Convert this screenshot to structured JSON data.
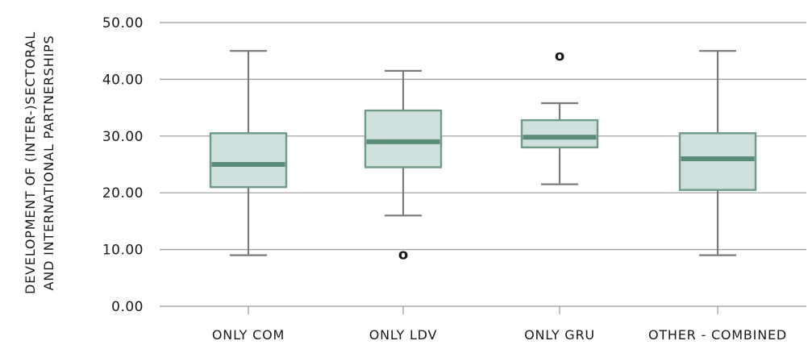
{
  "chart_data": {
    "type": "boxplot",
    "ylabel_lines": [
      "DEVELOPMENT OF (INTER-)SECTORAL",
      "AND INTERNATIONAL PARTNERSHIPS"
    ],
    "ylim": [
      0,
      50
    ],
    "yticks": [
      0,
      10,
      20,
      30,
      40,
      50
    ],
    "ytick_labels": [
      "0.00",
      "10.00",
      "20.00",
      "30.00",
      "40.00",
      "50.00"
    ],
    "categories": [
      "ONLY COM",
      "ONLY LDV",
      "ONLY GRU",
      "OTHER - COMBINED"
    ],
    "boxes": [
      {
        "whisker_low": 9,
        "q1": 21,
        "median": 25,
        "q3": 30.5,
        "whisker_high": 45,
        "outliers": []
      },
      {
        "whisker_low": 16,
        "q1": 24.5,
        "median": 29,
        "q3": 34.5,
        "whisker_high": 41.5,
        "outliers": [
          9
        ]
      },
      {
        "whisker_low": 21.5,
        "q1": 28,
        "median": 29.8,
        "q3": 32.8,
        "whisker_high": 35.8,
        "outliers": [
          44
        ]
      },
      {
        "whisker_low": 9,
        "q1": 20.5,
        "median": 26,
        "q3": 30.5,
        "whisker_high": 45,
        "outliers": []
      }
    ],
    "outlier_symbol": "o",
    "grid": true,
    "colors": {
      "box_fill": "#cfe0df",
      "box_stroke": "#6e9a86",
      "median": "#5b8c77",
      "whisker": "#7a7a7a",
      "grid": "#9a9a9a",
      "text": "#1a1a1a"
    }
  }
}
